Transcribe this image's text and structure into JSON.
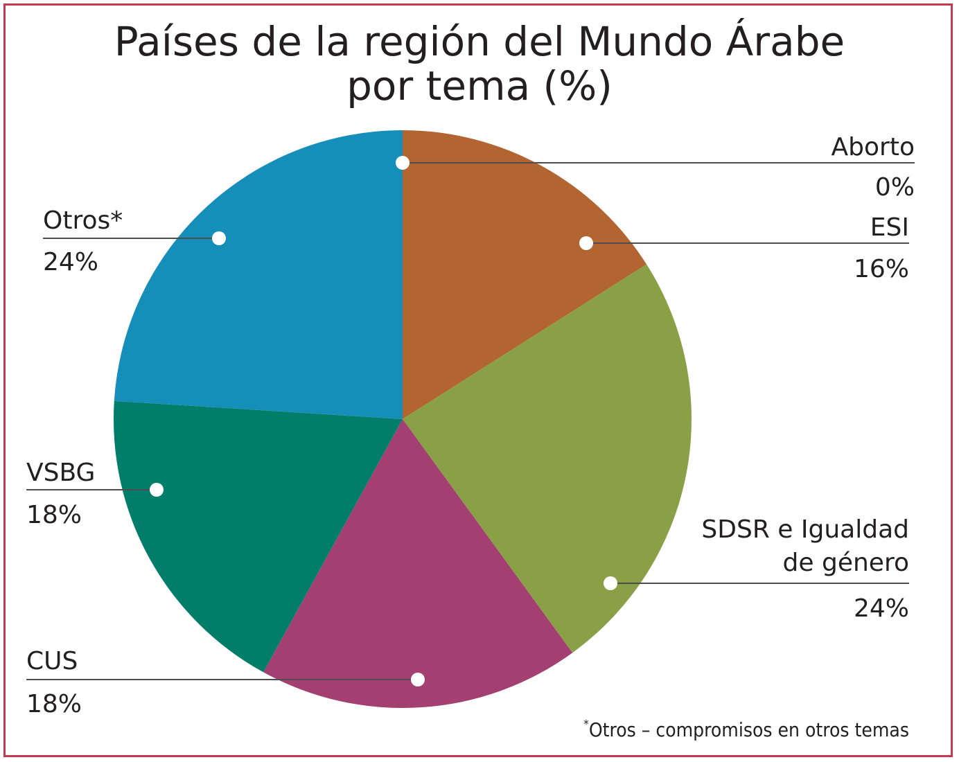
{
  "title_line1": "Países de la región del Mundo Árabe",
  "title_line2": "por tema (%)",
  "footnote_mark": "*",
  "footnote_text": "Otros – compromisos en otros temas",
  "colors": {
    "frame": "#c8384d",
    "text": "#231f20",
    "leader": "#4d4d4f"
  },
  "chart_data": {
    "type": "pie",
    "title": "Países de la región del Mundo Árabe por tema (%)",
    "slices": [
      {
        "label": "Aborto",
        "value": 0,
        "display": "0%",
        "color": "#b26431"
      },
      {
        "label": "ESI",
        "value": 16,
        "display": "16%",
        "color": "#b26431"
      },
      {
        "label": "SDSR e Igualdad de género",
        "label_lines": [
          "SDSR e Igualdad",
          "de género"
        ],
        "value": 24,
        "display": "24%",
        "color": "#8aa046"
      },
      {
        "label": "CUS",
        "value": 18,
        "display": "18%",
        "color": "#a33f71"
      },
      {
        "label": "VSBG",
        "value": 18,
        "display": "18%",
        "color": "#007e69"
      },
      {
        "label": "Otros*",
        "value": 24,
        "display": "24%",
        "color": "#168eba"
      }
    ]
  }
}
